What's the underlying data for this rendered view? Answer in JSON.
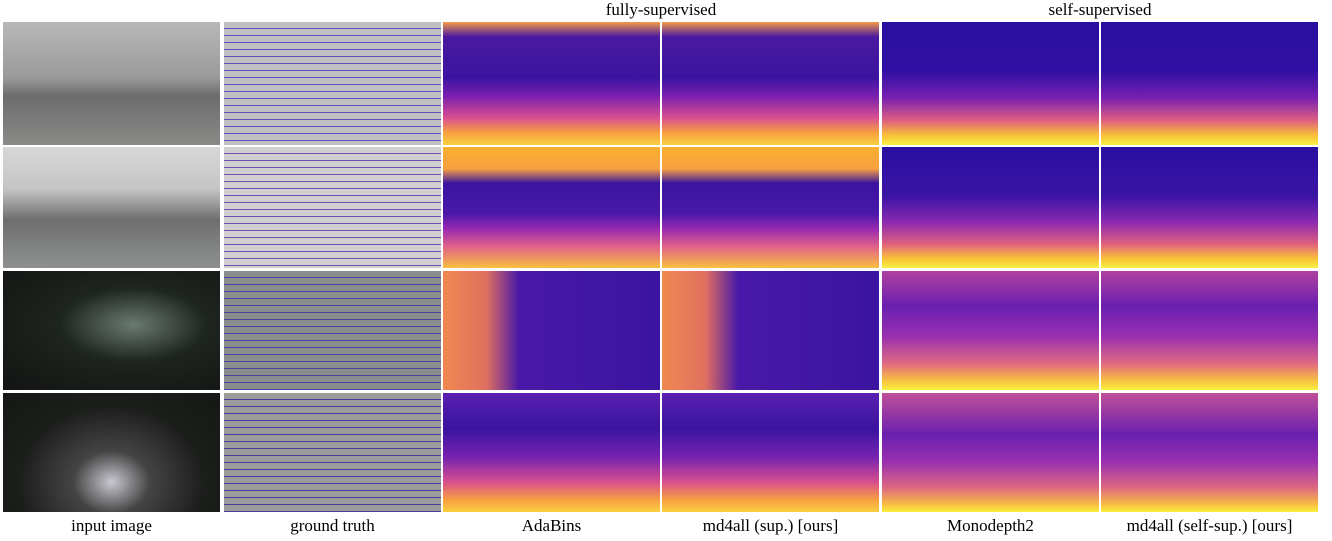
{
  "header": {
    "groups": [
      "fully-supervised",
      "self-supervised"
    ]
  },
  "columns": [
    "input image",
    "ground truth",
    "AdaBins",
    "md4all (sup.) [ours]",
    "Monodepth2",
    "md4all (self-sup.) [ours]"
  ]
}
